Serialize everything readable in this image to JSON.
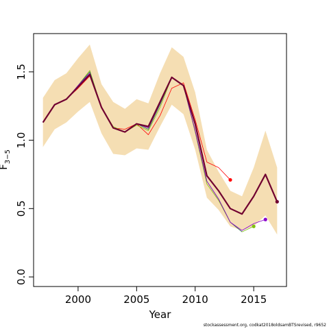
{
  "chart_data": {
    "type": "line",
    "xlabel": "Year",
    "ylabel": "F",
    "ylabel_subscript": "3−5",
    "xlim": [
      1996.2,
      2017.8
    ],
    "ylim": [
      -0.07,
      1.78
    ],
    "x_ticks": [
      2000,
      2005,
      2010,
      2015
    ],
    "y_ticks": [
      0.0,
      0.5,
      1.0,
      1.5
    ],
    "grid": false,
    "legend": "none",
    "band": {
      "color": "#f5deb3",
      "x": [
        1997,
        1998,
        1999,
        2000,
        2001,
        2002,
        2003,
        2004,
        2005,
        2006,
        2007,
        2008,
        2009,
        2010,
        2011,
        2012,
        2013,
        2014,
        2015,
        2016,
        2017
      ],
      "upper": [
        1.31,
        1.44,
        1.49,
        1.6,
        1.7,
        1.41,
        1.28,
        1.23,
        1.3,
        1.27,
        1.49,
        1.68,
        1.61,
        1.35,
        0.93,
        0.77,
        0.63,
        0.59,
        0.8,
        1.07,
        0.8
      ],
      "lower": [
        0.95,
        1.08,
        1.13,
        1.21,
        1.28,
        1.05,
        0.9,
        0.89,
        0.94,
        0.93,
        1.1,
        1.26,
        1.19,
        0.93,
        0.58,
        0.49,
        0.37,
        0.34,
        0.37,
        0.45,
        0.31
      ]
    },
    "series": [
      {
        "x": [
          1997,
          1998,
          1999,
          2000,
          2001,
          2002,
          2003,
          2004,
          2005,
          2006,
          2007,
          2008,
          2009,
          2010,
          2011,
          2012,
          2013
        ],
        "values": [
          1.13,
          1.26,
          1.3,
          1.38,
          1.47,
          1.24,
          1.09,
          1.08,
          1.12,
          1.04,
          1.18,
          1.38,
          1.42,
          1.15,
          0.84,
          0.8,
          0.71
        ],
        "color": "#ff0000",
        "width": 0.8,
        "endpoint": true
      },
      {
        "x": [
          1997,
          1998,
          1999,
          2000,
          2001,
          2002,
          2003,
          2004,
          2005,
          2006,
          2007,
          2008,
          2009,
          2010,
          2011,
          2012,
          2013,
          2014,
          2015
        ],
        "values": [
          1.13,
          1.26,
          1.3,
          1.4,
          1.51,
          1.24,
          1.1,
          1.06,
          1.11,
          1.07,
          1.24,
          1.46,
          1.4,
          1.06,
          0.68,
          0.56,
          0.4,
          0.33,
          0.37
        ],
        "color": "#80c010",
        "width": 0.8,
        "endpoint": true
      },
      {
        "x": [
          1997,
          1998,
          1999,
          2000,
          2001,
          2002,
          2003,
          2004,
          2005,
          2006,
          2007,
          2008,
          2009,
          2010,
          2011,
          2012,
          2013,
          2014
        ],
        "values": [
          1.13,
          1.26,
          1.3,
          1.4,
          1.5,
          1.24,
          1.09,
          1.06,
          1.12,
          1.08,
          1.26,
          1.46,
          1.4,
          1.07,
          0.7,
          0.57,
          0.4,
          0.33
        ],
        "color": "#2a6060",
        "width": 0.8,
        "endpoint": false
      },
      {
        "x": [
          1997,
          1998,
          1999,
          2000,
          2001,
          2002,
          2003,
          2004,
          2005,
          2006,
          2007,
          2008,
          2009,
          2010,
          2011,
          2012,
          2013,
          2014,
          2015,
          2016
        ],
        "values": [
          1.13,
          1.26,
          1.3,
          1.4,
          1.49,
          1.24,
          1.09,
          1.06,
          1.12,
          1.09,
          1.27,
          1.46,
          1.4,
          1.07,
          0.7,
          0.57,
          0.4,
          0.34,
          0.39,
          0.42
        ],
        "color": "#8800cc",
        "width": 0.8,
        "endpoint": true
      },
      {
        "x": [
          1997,
          1998,
          1999,
          2000,
          2001,
          2002,
          2003,
          2004,
          2005,
          2006,
          2007,
          2008,
          2009,
          2010,
          2011,
          2012,
          2013,
          2014,
          2015,
          2016,
          2017
        ],
        "values": [
          1.13,
          1.26,
          1.3,
          1.39,
          1.48,
          1.24,
          1.09,
          1.06,
          1.12,
          1.1,
          1.28,
          1.46,
          1.4,
          1.12,
          0.74,
          0.63,
          0.5,
          0.46,
          0.59,
          0.75,
          0.55
        ],
        "color": "#700030",
        "width": 2.2,
        "endpoint": true
      }
    ]
  },
  "footer": {
    "note": "stockassessment.org, codkat2018oldsamBTSrevised, r9652"
  }
}
